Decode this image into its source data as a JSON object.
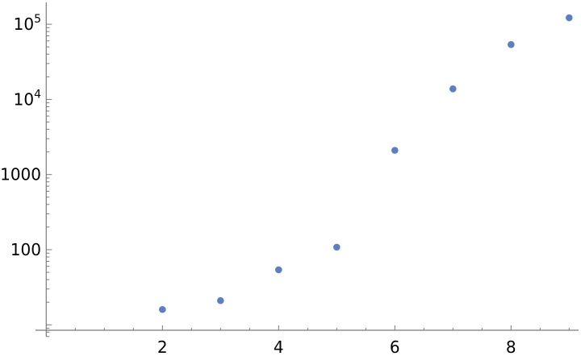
{
  "chart_data": {
    "type": "scatter",
    "title": "",
    "xlabel": "",
    "ylabel": "",
    "y_scale": "log",
    "xlim": [
      0,
      9.2
    ],
    "ylim": [
      8,
      180000
    ],
    "grid": false,
    "x_ticks": [
      {
        "value": 2,
        "label": "2"
      },
      {
        "value": 4,
        "label": "4"
      },
      {
        "value": 6,
        "label": "6"
      },
      {
        "value": 8,
        "label": "8"
      }
    ],
    "y_ticks": [
      {
        "value": 100,
        "label": "100"
      },
      {
        "value": 1000,
        "label": "1000"
      },
      {
        "value": 10000,
        "label": "10",
        "exp": "4"
      },
      {
        "value": 100000,
        "label": "10",
        "exp": "5"
      }
    ],
    "series": [
      {
        "color": "#5b7fbf",
        "x": [
          2,
          3,
          4,
          5,
          6,
          7,
          8,
          9
        ],
        "y": [
          16,
          21,
          54,
          108,
          2100,
          13800,
          53700,
          122000
        ]
      }
    ]
  }
}
